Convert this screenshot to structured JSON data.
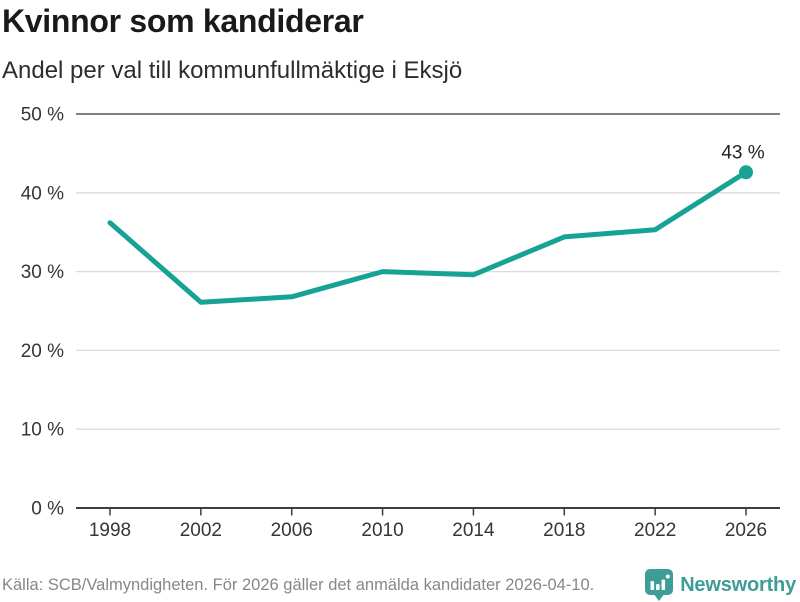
{
  "chart_data": {
    "type": "line",
    "title": "Kvinnor som kandiderar",
    "subtitle": "Andel per val till kommunfullmäktige i Eksjö",
    "categories": [
      "1998",
      "2002",
      "2006",
      "2010",
      "2014",
      "2018",
      "2022",
      "2026"
    ],
    "values": [
      36.2,
      26.1,
      26.8,
      30.0,
      29.6,
      34.4,
      35.3,
      42.6
    ],
    "end_label": "43 %",
    "ylim": [
      0,
      50
    ],
    "yticks": [
      0,
      10,
      20,
      30,
      40,
      50
    ],
    "ytick_suffix": " %",
    "grid": true,
    "legend": false,
    "line_color": "#16A295"
  },
  "footer": {
    "source": "Källa: SCB/Valmyndigheten. För 2026 gäller det anmälda kandidater 2026-04-10.",
    "brand": "Newsworthy",
    "brand_icon": "newsworthy-bubble-barchart-icon"
  },
  "colors": {
    "accent": "#16A295",
    "logo_teal": "#3E9D96",
    "grid": "#DBDBDB",
    "grid_top": "#7F7F7F",
    "axis": "#3D3D3D",
    "title": "#1A1A1A",
    "subtitle": "#2D2D2D",
    "tick_label": "#363636",
    "point_label": "#222222",
    "source_text": "#878787",
    "background": "#FFFFFF"
  }
}
